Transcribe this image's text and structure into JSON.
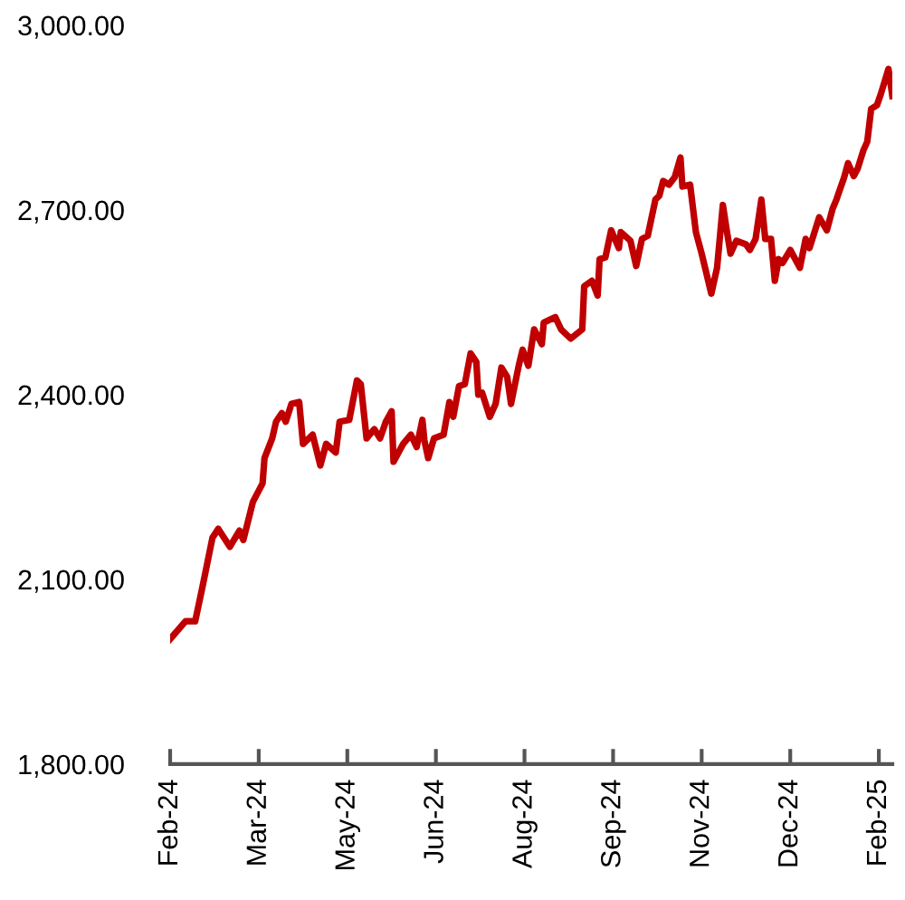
{
  "chart_data": {
    "type": "line",
    "x": [
      "2024-02-05",
      "2024-02-13",
      "2024-02-18",
      "2024-02-22",
      "2024-02-27",
      "2024-03-01",
      "2024-03-07",
      "2024-03-12",
      "2024-03-14",
      "2024-03-19",
      "2024-03-24",
      "2024-03-25",
      "2024-03-29",
      "2024-03-31",
      "2024-04-03",
      "2024-04-05",
      "2024-04-08",
      "2024-04-12",
      "2024-04-14",
      "2024-04-19",
      "2024-04-23",
      "2024-04-26",
      "2024-05-01",
      "2024-05-03",
      "2024-05-08",
      "2024-05-12",
      "2024-05-14",
      "2024-05-17",
      "2024-05-21",
      "2024-05-24",
      "2024-05-27",
      "2024-05-30",
      "2024-05-31",
      "2024-06-05",
      "2024-06-09",
      "2024-06-12",
      "2024-06-15",
      "2024-06-16",
      "2024-06-18",
      "2024-06-21",
      "2024-06-26",
      "2024-06-29",
      "2024-07-01",
      "2024-07-04",
      "2024-07-07",
      "2024-07-10",
      "2024-07-13",
      "2024-07-14",
      "2024-07-16",
      "2024-07-20",
      "2024-07-23",
      "2024-07-26",
      "2024-07-29",
      "2024-07-31",
      "2024-08-04",
      "2024-08-06",
      "2024-08-09",
      "2024-08-12",
      "2024-08-16",
      "2024-08-17",
      "2024-08-23",
      "2024-08-26",
      "2024-08-31",
      "2024-09-06",
      "2024-09-07",
      "2024-09-11",
      "2024-09-14",
      "2024-09-15",
      "2024-09-18",
      "2024-09-21",
      "2024-09-25",
      "2024-09-26",
      "2024-10-01",
      "2024-10-04",
      "2024-10-07",
      "2024-10-10",
      "2024-10-14",
      "2024-10-16",
      "2024-10-18",
      "2024-10-21",
      "2024-10-24",
      "2024-10-27",
      "2024-10-28",
      "2024-11-01",
      "2024-11-04",
      "2024-11-07",
      "2024-11-12",
      "2024-11-15",
      "2024-11-18",
      "2024-11-20",
      "2024-11-22",
      "2024-11-25",
      "2024-11-30",
      "2024-12-02",
      "2024-12-05",
      "2024-12-08",
      "2024-12-10",
      "2024-12-13",
      "2024-12-15",
      "2024-12-17",
      "2024-12-19",
      "2024-12-23",
      "2024-12-28",
      "2024-12-31",
      "2025-01-02",
      "2025-01-07",
      "2025-01-11",
      "2025-01-14",
      "2025-01-16",
      "2025-01-20",
      "2025-01-22",
      "2025-01-25",
      "2025-01-27",
      "2025-01-30",
      "2025-02-01",
      "2025-02-03",
      "2025-02-06",
      "2025-02-08",
      "2025-02-12",
      "2025-02-14"
    ],
    "series": [
      {
        "color": "#c00000",
        "values": [
          2003,
          2032,
          2032,
          2091,
          2168,
          2182,
          2153,
          2179,
          2164,
          2226,
          2256,
          2297,
          2329,
          2356,
          2370,
          2356,
          2385,
          2388,
          2320,
          2335,
          2285,
          2320,
          2306,
          2356,
          2359,
          2423,
          2417,
          2329,
          2344,
          2329,
          2356,
          2373,
          2291,
          2320,
          2335,
          2315,
          2359,
          2326,
          2297,
          2329,
          2335,
          2388,
          2364,
          2414,
          2417,
          2467,
          2453,
          2400,
          2403,
          2364,
          2385,
          2444,
          2429,
          2385,
          2447,
          2473,
          2447,
          2506,
          2482,
          2517,
          2526,
          2506,
          2491,
          2506,
          2576,
          2585,
          2561,
          2620,
          2623,
          2667,
          2638,
          2664,
          2650,
          2609,
          2653,
          2658,
          2717,
          2723,
          2747,
          2741,
          2753,
          2785,
          2738,
          2741,
          2664,
          2629,
          2564,
          2606,
          2708,
          2667,
          2629,
          2650,
          2644,
          2635,
          2653,
          2717,
          2653,
          2653,
          2585,
          2620,
          2614,
          2635,
          2606,
          2653,
          2638,
          2688,
          2667,
          2702,
          2717,
          2753,
          2776,
          2755,
          2767,
          2797,
          2811,
          2864,
          2870,
          2888,
          2929,
          2885
        ]
      }
    ],
    "xlim": [
      "2024-02-05",
      "2025-02-14"
    ],
    "xticks": [
      {
        "value": "2024-02-05",
        "label": "Feb-24"
      },
      {
        "value": "2024-03-22",
        "label": "Mar-24"
      },
      {
        "value": "2024-05-07",
        "label": "May-24"
      },
      {
        "value": "2024-06-22",
        "label": "Jun-24"
      },
      {
        "value": "2024-08-07",
        "label": "Aug-24"
      },
      {
        "value": "2024-09-22",
        "label": "Sep-24"
      },
      {
        "value": "2024-11-07",
        "label": "Nov-24"
      },
      {
        "value": "2024-12-23",
        "label": "Dec-24"
      },
      {
        "value": "2025-02-07",
        "label": "Feb-25"
      }
    ],
    "ylim": [
      1800,
      3000
    ],
    "yticks": [
      {
        "value": 1800,
        "label": "1,800.00"
      },
      {
        "value": 2100,
        "label": "2,100.00"
      },
      {
        "value": 2400,
        "label": "2,400.00"
      },
      {
        "value": 2700,
        "label": "2,700.00"
      },
      {
        "value": 3000,
        "label": "3,000.00"
      }
    ],
    "grid": false,
    "legend": false,
    "marker": "none",
    "line_style": "solid"
  }
}
